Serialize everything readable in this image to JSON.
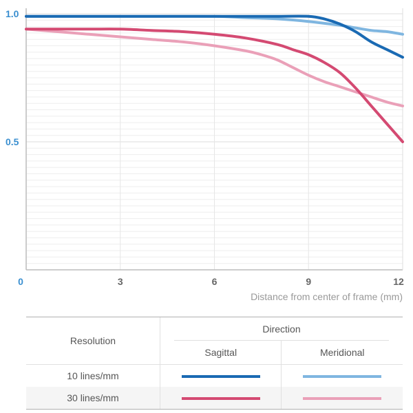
{
  "chart_data": {
    "type": "line",
    "xlabel": "Distance from center of frame (mm)",
    "ylabel": "",
    "xlim": [
      0,
      12
    ],
    "ylim": [
      0,
      1.0
    ],
    "x_ticks": [
      "0",
      "3",
      "6",
      "9",
      "12"
    ],
    "x_tick_values": [
      0,
      3,
      6,
      9,
      12
    ],
    "y_ticks": [
      "0.5",
      "1.0"
    ],
    "y_tick_values": [
      0.5,
      1.0
    ],
    "grid": true,
    "series": [
      {
        "resolution": "10 lines/mm",
        "direction": "Sagittal",
        "color": "#1a6ab3",
        "x": [
          0,
          1,
          2,
          3,
          4,
          5,
          6,
          7,
          8,
          9,
          9.5,
          10,
          10.5,
          11,
          11.5,
          12
        ],
        "y": [
          0.99,
          0.99,
          0.99,
          0.99,
          0.99,
          0.99,
          0.99,
          0.99,
          0.99,
          0.99,
          0.98,
          0.96,
          0.93,
          0.89,
          0.86,
          0.83
        ]
      },
      {
        "resolution": "10 lines/mm",
        "direction": "Meridional",
        "color": "#7fb6e0",
        "x": [
          0,
          2,
          4,
          6,
          7,
          8,
          9,
          10,
          10.5,
          11,
          11.5,
          12
        ],
        "y": [
          0.99,
          0.99,
          0.99,
          0.99,
          0.985,
          0.98,
          0.97,
          0.955,
          0.945,
          0.935,
          0.93,
          0.92
        ]
      },
      {
        "resolution": "30 lines/mm",
        "direction": "Sagittal",
        "color": "#d44a72",
        "x": [
          0,
          1,
          2,
          3,
          4,
          5,
          6,
          7,
          8,
          8.5,
          9,
          9.5,
          10,
          10.5,
          11,
          11.5,
          12
        ],
        "y": [
          0.94,
          0.94,
          0.94,
          0.94,
          0.935,
          0.93,
          0.92,
          0.905,
          0.88,
          0.86,
          0.84,
          0.81,
          0.77,
          0.71,
          0.64,
          0.57,
          0.5
        ]
      },
      {
        "resolution": "30 lines/mm",
        "direction": "Meridional",
        "color": "#eaa0b8",
        "x": [
          0,
          1,
          2,
          3,
          4,
          5,
          6,
          7,
          7.5,
          8,
          8.5,
          9,
          9.5,
          10,
          10.5,
          11,
          11.5,
          12
        ],
        "y": [
          0.94,
          0.93,
          0.92,
          0.91,
          0.9,
          0.89,
          0.875,
          0.855,
          0.84,
          0.82,
          0.79,
          0.76,
          0.735,
          0.715,
          0.695,
          0.675,
          0.655,
          0.64
        ]
      }
    ]
  },
  "legend": {
    "resolution_header": "Resolution",
    "direction_header": "Direction",
    "sagittal_label": "Sagittal",
    "meridional_label": "Meridional",
    "rows": [
      {
        "label": "10 lines/mm",
        "sagittal_color": "#1a6ab3",
        "meridional_color": "#7fb6e0"
      },
      {
        "label": "30 lines/mm",
        "sagittal_color": "#d44a72",
        "meridional_color": "#eaa0b8"
      }
    ]
  }
}
